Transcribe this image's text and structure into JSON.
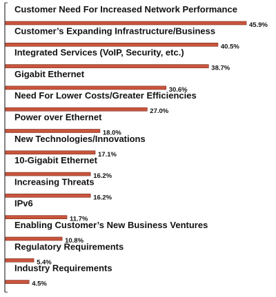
{
  "chart_data": {
    "type": "bar",
    "orientation": "horizontal",
    "categories": [
      "Customer Need For Increased Network Performance",
      "Customer’s Expanding Infrastructure/Business",
      "Integrated Services (VoIP, Security, etc.)",
      "Gigabit Ethernet",
      "Need For Lower Costs/Greater Efficiencies",
      "Power over Ethernet",
      "New Technologies/Innovations",
      "10-Gigabit Ethernet",
      "Increasing Threats",
      "IPv6",
      "Enabling Customer’s New Business Ventures",
      "Regulatory Requirements",
      "Industry Requirements"
    ],
    "values": [
      45.9,
      40.5,
      38.7,
      30.6,
      27.0,
      18.0,
      17.1,
      16.2,
      16.2,
      11.7,
      10.8,
      5.4,
      4.5
    ],
    "value_labels": [
      "45.9%",
      "40.5%",
      "38.7%",
      "30.6%",
      "27.0%",
      "18.0%",
      "17.1%",
      "16.2%",
      "16.2%",
      "11.7%",
      "10.8%",
      "5.4%",
      "4.5%"
    ],
    "bar_color": "#c8553d",
    "bar_edge_color": "#7a2a1c",
    "axis_color": "#333333",
    "xlim": [
      0,
      50
    ],
    "grid": false,
    "legend": "none"
  }
}
